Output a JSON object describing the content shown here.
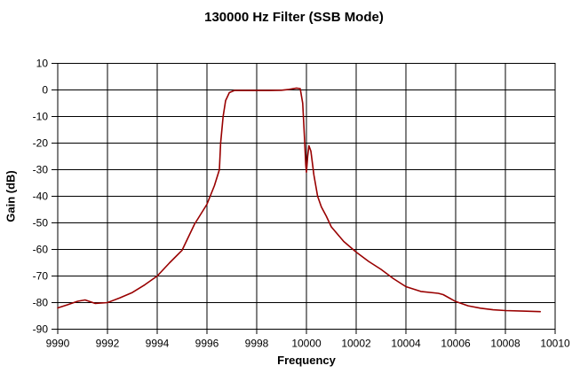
{
  "chart_data": {
    "type": "line",
    "title": "130000 Hz Filter (SSB Mode)",
    "xlabel": "Frequency",
    "ylabel": "Gain (dB)",
    "xlim": [
      9990,
      10010
    ],
    "ylim": [
      -90,
      10
    ],
    "x_ticks": [
      9990,
      9992,
      9994,
      9996,
      9998,
      10000,
      10002,
      10004,
      10006,
      10008,
      10010
    ],
    "y_ticks": [
      10,
      0,
      -10,
      -20,
      -30,
      -40,
      -50,
      -60,
      -70,
      -80,
      -90
    ],
    "grid": true,
    "legend": false,
    "line_color": "#990000",
    "grid_color": "#000000",
    "background_color": "#ffffff",
    "series": [
      {
        "name": "Gain",
        "points": [
          [
            9990.0,
            -82.0
          ],
          [
            9990.4,
            -80.8
          ],
          [
            9990.8,
            -79.5
          ],
          [
            9991.1,
            -79.0
          ],
          [
            9991.5,
            -80.3
          ],
          [
            9992.0,
            -80.0
          ],
          [
            9992.5,
            -78.2
          ],
          [
            9993.0,
            -76.2
          ],
          [
            9993.5,
            -73.3
          ],
          [
            9994.0,
            -70.0
          ],
          [
            9994.5,
            -65.0
          ],
          [
            9995.0,
            -60.3
          ],
          [
            9995.5,
            -50.5
          ],
          [
            9996.0,
            -43.0
          ],
          [
            9996.3,
            -36.0
          ],
          [
            9996.5,
            -30.0
          ],
          [
            9996.55,
            -20.0
          ],
          [
            9996.65,
            -10.0
          ],
          [
            9996.75,
            -4.0
          ],
          [
            9996.9,
            -1.0
          ],
          [
            9997.1,
            -0.2
          ],
          [
            9997.5,
            -0.2
          ],
          [
            9998.0,
            -0.2
          ],
          [
            9998.5,
            -0.2
          ],
          [
            9999.0,
            -0.1
          ],
          [
            9999.3,
            0.2
          ],
          [
            9999.6,
            0.7
          ],
          [
            9999.75,
            0.5
          ],
          [
            9999.85,
            -5.0
          ],
          [
            9999.92,
            -18.0
          ],
          [
            9999.97,
            -28.0
          ],
          [
            10000.0,
            -31.0
          ],
          [
            10000.05,
            -25.0
          ],
          [
            10000.1,
            -21.0
          ],
          [
            10000.18,
            -23.0
          ],
          [
            10000.3,
            -32.0
          ],
          [
            10000.45,
            -40.0
          ],
          [
            10000.6,
            -44.0
          ],
          [
            10000.8,
            -47.5
          ],
          [
            10001.0,
            -51.5
          ],
          [
            10001.5,
            -57.0
          ],
          [
            10002.0,
            -61.0
          ],
          [
            10002.5,
            -64.5
          ],
          [
            10003.0,
            -67.5
          ],
          [
            10003.5,
            -71.0
          ],
          [
            10004.0,
            -74.0
          ],
          [
            10004.6,
            -75.8
          ],
          [
            10005.3,
            -76.5
          ],
          [
            10005.5,
            -77.0
          ],
          [
            10006.0,
            -79.6
          ],
          [
            10006.5,
            -81.2
          ],
          [
            10007.0,
            -82.1
          ],
          [
            10007.5,
            -82.7
          ],
          [
            10008.0,
            -83.0
          ],
          [
            10008.7,
            -83.2
          ],
          [
            10009.4,
            -83.4
          ]
        ]
      }
    ]
  }
}
